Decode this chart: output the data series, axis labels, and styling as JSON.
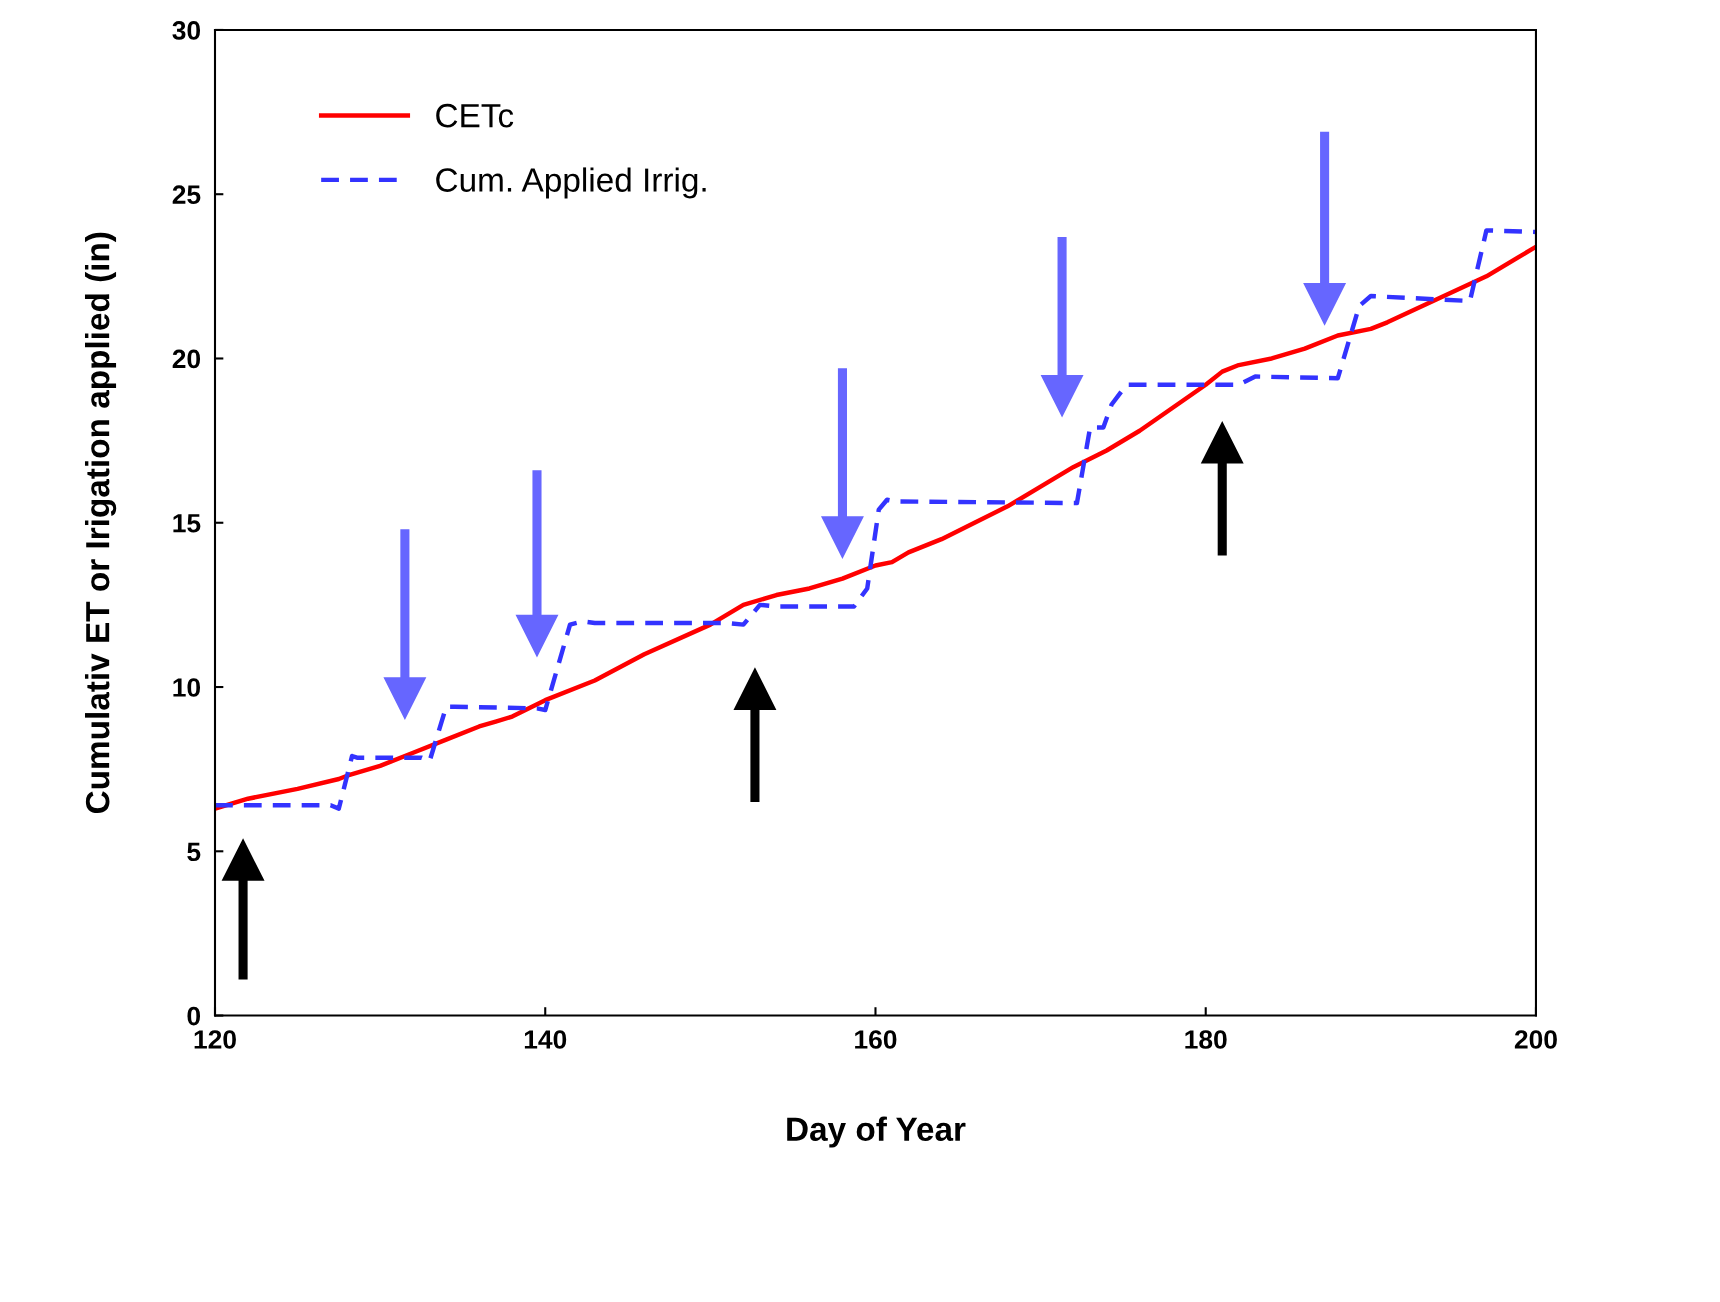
{
  "chart_data": {
    "type": "line",
    "xlabel": "Day of Year",
    "ylabel": "Cumulativ ET or Irigation applied (in)",
    "xlim": [
      120,
      200
    ],
    "xticks": [
      120,
      140,
      160,
      180,
      200
    ],
    "ylim": [
      0,
      30
    ],
    "yticks": [
      0,
      5,
      10,
      15,
      20,
      25,
      30
    ],
    "grid": false,
    "legend": "top left",
    "marker": "none",
    "series": [
      {
        "name": "CETc",
        "color": "#ff0000",
        "line_style": "solid",
        "x": [
          120,
          122,
          125,
          127.5,
          128,
          130,
          132,
          134,
          136,
          137,
          138,
          140,
          143,
          146,
          150,
          152,
          154,
          156,
          158,
          160,
          161,
          162,
          164,
          166,
          168,
          170,
          172,
          174,
          176,
          178,
          180,
          181,
          182,
          184,
          186,
          188,
          190,
          191,
          194,
          197,
          200
        ],
        "values": [
          6.3,
          6.6,
          6.9,
          7.2,
          7.3,
          7.6,
          8.0,
          8.4,
          8.8,
          8.95,
          9.1,
          9.6,
          10.2,
          11.0,
          11.9,
          12.5,
          12.8,
          13.0,
          13.3,
          13.7,
          13.8,
          14.1,
          14.5,
          15.0,
          15.5,
          16.1,
          16.7,
          17.2,
          17.8,
          18.5,
          19.2,
          19.6,
          19.8,
          20.0,
          20.3,
          20.7,
          20.9,
          21.1,
          21.8,
          22.5,
          23.4
        ]
      },
      {
        "name": "Cum. Applied Irrig.",
        "color": "#3333ff",
        "line_style": "dashed",
        "x": [
          120,
          127,
          127.5,
          128.3,
          128.6,
          132.5,
          133,
          134,
          134.5,
          139.5,
          140,
          141.5,
          142.3,
          143,
          151,
          152,
          153,
          154,
          158.7,
          159.5,
          160.2,
          160.7,
          161.2,
          172.2,
          173,
          173.8,
          174.3,
          175.2,
          182,
          183,
          188,
          189.3,
          190,
          196,
          197,
          200
        ],
        "values": [
          6.4,
          6.4,
          6.3,
          7.9,
          7.85,
          7.85,
          7.75,
          9.4,
          9.4,
          9.35,
          9.3,
          11.9,
          12.0,
          11.95,
          11.95,
          11.9,
          12.5,
          12.45,
          12.45,
          13.0,
          15.4,
          15.7,
          15.65,
          15.6,
          17.9,
          17.9,
          18.6,
          19.2,
          19.2,
          19.45,
          19.4,
          21.6,
          21.9,
          21.75,
          23.9,
          23.85
        ]
      }
    ]
  }
}
